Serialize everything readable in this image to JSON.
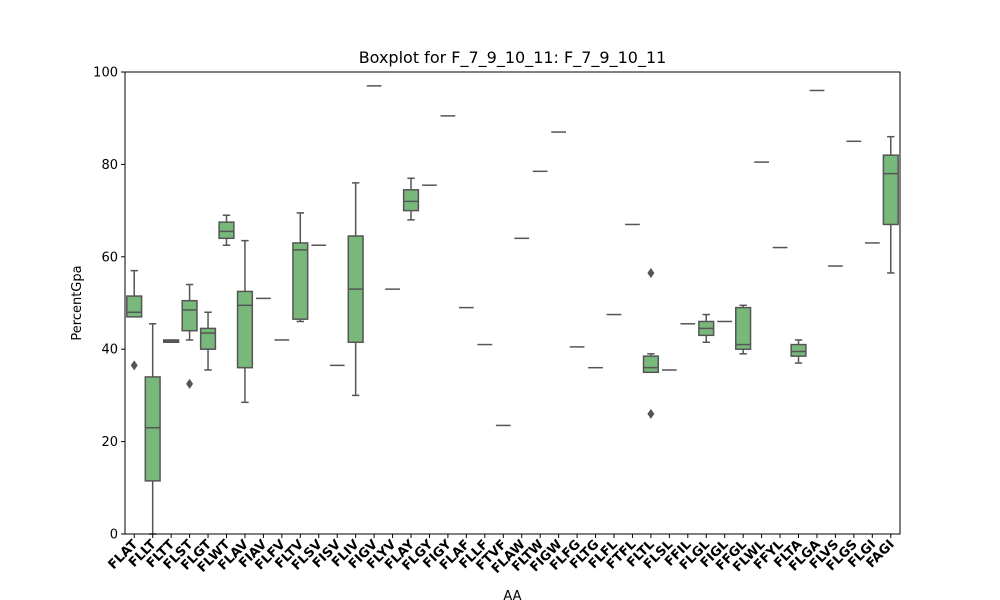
{
  "chart_data": {
    "type": "boxplot",
    "title": "Boxplot for F_7_9_10_11: F_7_9_10_11",
    "xlabel": "AA",
    "ylabel": "PercentGpa",
    "ylim": [
      0,
      100
    ],
    "yticks": [
      0,
      20,
      40,
      60,
      80,
      100
    ],
    "grid": false,
    "legend": "none",
    "colors": {
      "box_fill": "#78b87a",
      "line": "#555555"
    },
    "categories": [
      "FLAT",
      "FLLT",
      "FLTT",
      "FLST",
      "FLGT",
      "FLWT",
      "FLAV",
      "FIAV",
      "FLFV",
      "FLTV",
      "FLSV",
      "FISV",
      "FLIV",
      "FIGV",
      "FLYV",
      "FLAY",
      "FLGY",
      "FIGY",
      "FLAF",
      "FLLF",
      "FTVF",
      "FLAW",
      "FLTW",
      "FIGW",
      "FLFG",
      "FLTG",
      "FLFL",
      "FTFL",
      "FLTL",
      "FLSL",
      "FFIL",
      "FLGL",
      "FIGL",
      "FFGL",
      "FLWL",
      "FFYL",
      "FLTA",
      "FLGA",
      "FLVS",
      "FLGS",
      "FLGI",
      "FAGI"
    ],
    "boxes": [
      {
        "min": 47,
        "q1": 47,
        "median": 48,
        "q3": 51.5,
        "max": 57,
        "outliers": [
          36.5
        ]
      },
      {
        "min": 0,
        "q1": 11.5,
        "median": 23,
        "q3": 34,
        "max": 45.5,
        "outliers": []
      },
      {
        "min": 41.5,
        "q1": 41.5,
        "median": 41.8,
        "q3": 42,
        "max": 42,
        "outliers": []
      },
      {
        "min": 42,
        "q1": 44,
        "median": 48.5,
        "q3": 50.5,
        "max": 54,
        "outliers": [
          32.5
        ]
      },
      {
        "min": 35.5,
        "q1": 40,
        "median": 43.5,
        "q3": 44.5,
        "max": 48,
        "outliers": []
      },
      {
        "min": 62.5,
        "q1": 64,
        "median": 65.5,
        "q3": 67.5,
        "max": 69,
        "outliers": []
      },
      {
        "min": 28.5,
        "q1": 36,
        "median": 49.5,
        "q3": 52.5,
        "max": 63.5,
        "outliers": []
      },
      {
        "min": 51,
        "q1": 51,
        "median": 51,
        "q3": 51,
        "max": 51,
        "outliers": []
      },
      {
        "min": 42,
        "q1": 42,
        "median": 42,
        "q3": 42,
        "max": 42,
        "outliers": []
      },
      {
        "min": 46,
        "q1": 46.5,
        "median": 61.5,
        "q3": 63,
        "max": 69.5,
        "outliers": []
      },
      {
        "min": 62.5,
        "q1": 62.5,
        "median": 62.5,
        "q3": 62.5,
        "max": 62.5,
        "outliers": []
      },
      {
        "min": 36.5,
        "q1": 36.5,
        "median": 36.5,
        "q3": 36.5,
        "max": 36.5,
        "outliers": []
      },
      {
        "min": 30,
        "q1": 41.5,
        "median": 53,
        "q3": 64.5,
        "max": 76,
        "outliers": []
      },
      {
        "min": 97,
        "q1": 97,
        "median": 97,
        "q3": 97,
        "max": 97,
        "outliers": []
      },
      {
        "min": 53,
        "q1": 53,
        "median": 53,
        "q3": 53,
        "max": 53,
        "outliers": []
      },
      {
        "min": 68,
        "q1": 70,
        "median": 72,
        "q3": 74.5,
        "max": 77,
        "outliers": []
      },
      {
        "min": 75.5,
        "q1": 75.5,
        "median": 75.5,
        "q3": 75.5,
        "max": 75.5,
        "outliers": []
      },
      {
        "min": 90.5,
        "q1": 90.5,
        "median": 90.5,
        "q3": 90.5,
        "max": 90.5,
        "outliers": []
      },
      {
        "min": 49,
        "q1": 49,
        "median": 49,
        "q3": 49,
        "max": 49,
        "outliers": []
      },
      {
        "min": 41,
        "q1": 41,
        "median": 41,
        "q3": 41,
        "max": 41,
        "outliers": []
      },
      {
        "min": 23.5,
        "q1": 23.5,
        "median": 23.5,
        "q3": 23.5,
        "max": 23.5,
        "outliers": []
      },
      {
        "min": 64,
        "q1": 64,
        "median": 64,
        "q3": 64,
        "max": 64,
        "outliers": []
      },
      {
        "min": 78.5,
        "q1": 78.5,
        "median": 78.5,
        "q3": 78.5,
        "max": 78.5,
        "outliers": []
      },
      {
        "min": 87,
        "q1": 87,
        "median": 87,
        "q3": 87,
        "max": 87,
        "outliers": []
      },
      {
        "min": 40.5,
        "q1": 40.5,
        "median": 40.5,
        "q3": 40.5,
        "max": 40.5,
        "outliers": []
      },
      {
        "min": 36,
        "q1": 36,
        "median": 36,
        "q3": 36,
        "max": 36,
        "outliers": []
      },
      {
        "min": 47.5,
        "q1": 47.5,
        "median": 47.5,
        "q3": 47.5,
        "max": 47.5,
        "outliers": []
      },
      {
        "min": 67,
        "q1": 67,
        "median": 67,
        "q3": 67,
        "max": 67,
        "outliers": []
      },
      {
        "min": 35,
        "q1": 35,
        "median": 36,
        "q3": 38.5,
        "max": 39,
        "outliers": [
          56.5,
          26
        ]
      },
      {
        "min": 35.5,
        "q1": 35.5,
        "median": 35.5,
        "q3": 35.5,
        "max": 35.5,
        "outliers": []
      },
      {
        "min": 45.5,
        "q1": 45.5,
        "median": 45.5,
        "q3": 45.5,
        "max": 45.5,
        "outliers": []
      },
      {
        "min": 41.5,
        "q1": 43,
        "median": 44.5,
        "q3": 46,
        "max": 47.5,
        "outliers": []
      },
      {
        "min": 46,
        "q1": 46,
        "median": 46,
        "q3": 46,
        "max": 46,
        "outliers": []
      },
      {
        "min": 39,
        "q1": 40,
        "median": 41,
        "q3": 49,
        "max": 49.5,
        "outliers": []
      },
      {
        "min": 80.5,
        "q1": 80.5,
        "median": 80.5,
        "q3": 80.5,
        "max": 80.5,
        "outliers": []
      },
      {
        "min": 62,
        "q1": 62,
        "median": 62,
        "q3": 62,
        "max": 62,
        "outliers": []
      },
      {
        "min": 37,
        "q1": 38.5,
        "median": 39.5,
        "q3": 41,
        "max": 42,
        "outliers": []
      },
      {
        "min": 96,
        "q1": 96,
        "median": 96,
        "q3": 96,
        "max": 96,
        "outliers": []
      },
      {
        "min": 58,
        "q1": 58,
        "median": 58,
        "q3": 58,
        "max": 58,
        "outliers": []
      },
      {
        "min": 85,
        "q1": 85,
        "median": 85,
        "q3": 85,
        "max": 85,
        "outliers": []
      },
      {
        "min": 63,
        "q1": 63,
        "median": 63,
        "q3": 63,
        "max": 63,
        "outliers": []
      },
      {
        "min": 56.5,
        "q1": 67,
        "median": 78,
        "q3": 82,
        "max": 86,
        "outliers": []
      }
    ]
  }
}
